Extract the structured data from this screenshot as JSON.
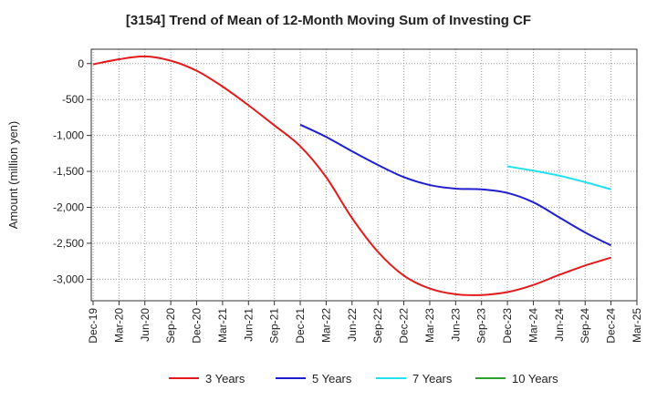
{
  "chart_data": {
    "type": "line",
    "title": "[3154]  Trend of Mean of 12-Month Moving Sum of Investing CF",
    "xlabel": "",
    "ylabel": "Amount (million yen)",
    "ylim": [
      -3300,
      200
    ],
    "yticks": [
      0,
      -500,
      -1000,
      -1500,
      -2000,
      -2500,
      -3000
    ],
    "ytick_labels": [
      "0",
      "-500",
      "-1,000",
      "-1,500",
      "-2,000",
      "-2,500",
      "-3,000"
    ],
    "xtick_labels": [
      "Dec-19",
      "Mar-20",
      "Jun-20",
      "Sep-20",
      "Dec-20",
      "Mar-21",
      "Jun-21",
      "Sep-21",
      "Dec-21",
      "Mar-22",
      "Jun-22",
      "Sep-22",
      "Dec-22",
      "Mar-23",
      "Jun-23",
      "Sep-23",
      "Dec-23",
      "Mar-24",
      "Jun-24",
      "Sep-24",
      "Dec-24",
      "Mar-25"
    ],
    "grid": true,
    "legend_position": "bottom",
    "series": [
      {
        "name": "3 Years",
        "color": "#e31a1c",
        "start_index": 0,
        "values": [
          -10,
          60,
          100,
          40,
          -100,
          -320,
          -580,
          -860,
          -1150,
          -1580,
          -2150,
          -2620,
          -2950,
          -3130,
          -3210,
          -3220,
          -3180,
          -3080,
          -2940,
          -2810,
          -2700
        ]
      },
      {
        "name": "5 Years",
        "color": "#1f1fcf",
        "start_index": 8,
        "values": [
          -850,
          -1020,
          -1220,
          -1410,
          -1580,
          -1690,
          -1740,
          -1750,
          -1800,
          -1930,
          -2140,
          -2350,
          -2530
        ]
      },
      {
        "name": "7 Years",
        "color": "#22e0ee",
        "start_index": 16,
        "values": [
          -1430,
          -1490,
          -1560,
          -1650,
          -1750
        ]
      },
      {
        "name": "10 Years",
        "color": "#2ca02c",
        "start_index": 0,
        "values": []
      }
    ]
  }
}
